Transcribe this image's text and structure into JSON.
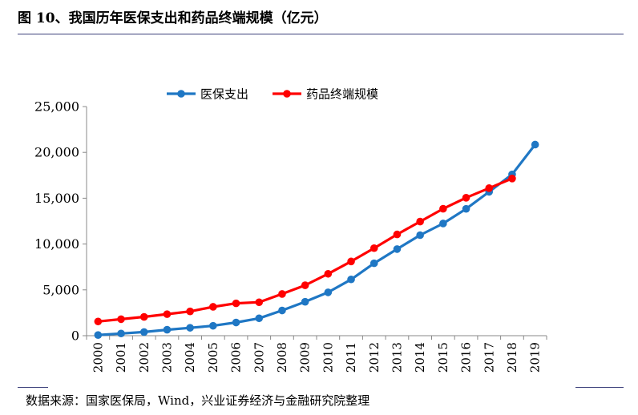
{
  "figure": {
    "title": "图 10、我国历年医保支出和药品终端规模（亿元）",
    "source": "数据来源：国家医保局，Wind，兴业证券经济与金融研究院整理"
  },
  "chart_data": {
    "type": "line",
    "title": "",
    "xlabel": "",
    "ylabel": "",
    "x": [
      "2000",
      "2001",
      "2002",
      "2003",
      "2004",
      "2005",
      "2006",
      "2007",
      "2008",
      "2009",
      "2010",
      "2011",
      "2012",
      "2013",
      "2014",
      "2015",
      "2016",
      "2017",
      "2018",
      "2019"
    ],
    "ylim": [
      0,
      25000
    ],
    "yticks": [
      0,
      5000,
      10000,
      15000,
      20000,
      25000
    ],
    "ytick_labels": [
      "0",
      "5,000",
      "10,000",
      "15,000",
      "20,000",
      "25,000"
    ],
    "grid": false,
    "legend_position": "top-center",
    "series": [
      {
        "name": "医保支出",
        "color": "#1f77c4",
        "values": [
          70,
          240,
          400,
          650,
          860,
          1080,
          1440,
          1900,
          2750,
          3700,
          4730,
          6140,
          7900,
          9450,
          10970,
          12240,
          13840,
          15700,
          17600,
          20850
        ]
      },
      {
        "name": "药品终端规模",
        "color": "#ff0000",
        "values": [
          1550,
          1800,
          2050,
          2350,
          2650,
          3150,
          3530,
          3650,
          4550,
          5500,
          6750,
          8100,
          9550,
          11050,
          12450,
          13850,
          15050,
          16100,
          17150,
          null
        ]
      }
    ]
  }
}
